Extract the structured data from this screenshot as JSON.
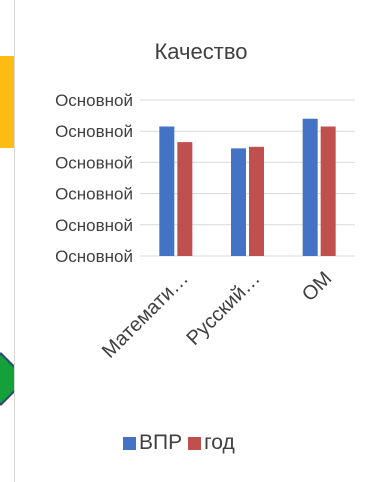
{
  "chart_data": {
    "type": "bar",
    "title": "Качество",
    "categories": [
      "Математи…",
      "Русский…",
      "ОМ"
    ],
    "series": [
      {
        "name": "ВПР",
        "color": "#4472c4",
        "values": [
          83,
          69,
          88
        ]
      },
      {
        "name": "год",
        "color": "#c0504d",
        "values": [
          73,
          70,
          83
        ]
      }
    ],
    "y_tick_labels": [
      "Основной",
      "Основной",
      "Основной",
      "Основной",
      "Основной",
      "Основной"
    ],
    "ylim": [
      0,
      100
    ],
    "grid": true,
    "legend_position": "bottom"
  }
}
